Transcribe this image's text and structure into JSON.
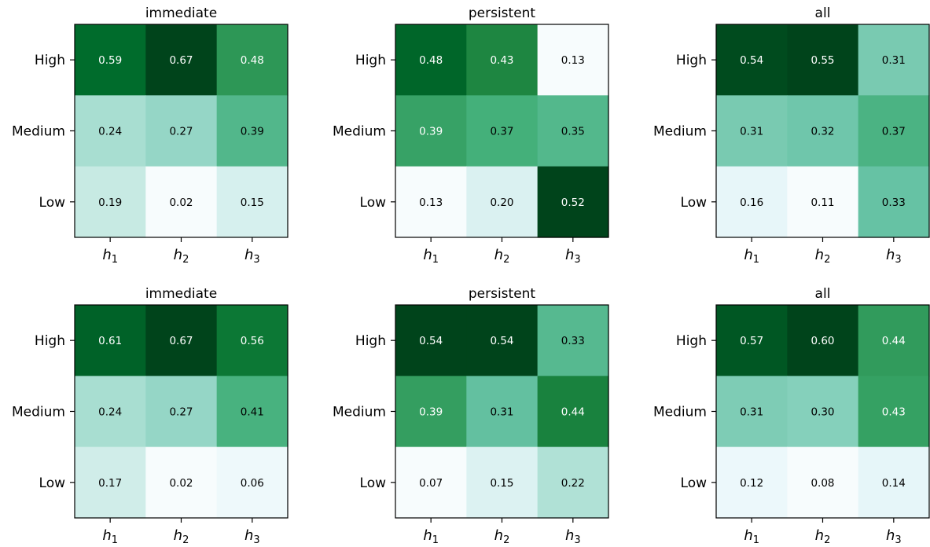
{
  "chart_data": [
    {
      "type": "heatmap",
      "title": "immediate",
      "x_categories": [
        {
          "base": "h",
          "sub": "1"
        },
        {
          "base": "h",
          "sub": "2"
        },
        {
          "base": "h",
          "sub": "3"
        }
      ],
      "y_categories": [
        "High",
        "Medium",
        "Low"
      ],
      "values": [
        [
          0.59,
          0.67,
          0.48
        ],
        [
          0.24,
          0.27,
          0.39
        ],
        [
          0.19,
          0.02,
          0.15
        ]
      ],
      "value_labels": [
        [
          "0.59",
          "0.67",
          "0.48"
        ],
        [
          "0.24",
          "0.27",
          "0.39"
        ],
        [
          "0.19",
          "0.02",
          "0.15"
        ]
      ],
      "colormap": "white-blue-green"
    },
    {
      "type": "heatmap",
      "title": "persistent",
      "x_categories": [
        {
          "base": "h",
          "sub": "1"
        },
        {
          "base": "h",
          "sub": "2"
        },
        {
          "base": "h",
          "sub": "3"
        }
      ],
      "y_categories": [
        "High",
        "Medium",
        "Low"
      ],
      "values": [
        [
          0.48,
          0.43,
          0.13
        ],
        [
          0.39,
          0.37,
          0.35
        ],
        [
          0.13,
          0.2,
          0.52
        ]
      ],
      "value_labels": [
        [
          "0.48",
          "0.43",
          "0.13"
        ],
        [
          "0.39",
          "0.37",
          "0.35"
        ],
        [
          "0.13",
          "0.20",
          "0.52"
        ]
      ],
      "colormap": "white-blue-green"
    },
    {
      "type": "heatmap",
      "title": "all",
      "x_categories": [
        {
          "base": "h",
          "sub": "1"
        },
        {
          "base": "h",
          "sub": "2"
        },
        {
          "base": "h",
          "sub": "3"
        }
      ],
      "y_categories": [
        "High",
        "Medium",
        "Low"
      ],
      "values": [
        [
          0.54,
          0.55,
          0.31
        ],
        [
          0.31,
          0.32,
          0.37
        ],
        [
          0.16,
          0.11,
          0.33
        ]
      ],
      "value_labels": [
        [
          "0.54",
          "0.55",
          "0.31"
        ],
        [
          "0.31",
          "0.32",
          "0.37"
        ],
        [
          "0.16",
          "0.11",
          "0.33"
        ]
      ],
      "colormap": "white-blue-green"
    },
    {
      "type": "heatmap",
      "title": "immediate",
      "x_categories": [
        {
          "base": "h",
          "sub": "1"
        },
        {
          "base": "h",
          "sub": "2"
        },
        {
          "base": "h",
          "sub": "3"
        }
      ],
      "y_categories": [
        "High",
        "Medium",
        "Low"
      ],
      "values": [
        [
          0.61,
          0.67,
          0.56
        ],
        [
          0.24,
          0.27,
          0.41
        ],
        [
          0.17,
          0.02,
          0.06
        ]
      ],
      "value_labels": [
        [
          "0.61",
          "0.67",
          "0.56"
        ],
        [
          "0.24",
          "0.27",
          "0.41"
        ],
        [
          "0.17",
          "0.02",
          "0.06"
        ]
      ],
      "colormap": "white-blue-green"
    },
    {
      "type": "heatmap",
      "title": "persistent",
      "x_categories": [
        {
          "base": "h",
          "sub": "1"
        },
        {
          "base": "h",
          "sub": "2"
        },
        {
          "base": "h",
          "sub": "3"
        }
      ],
      "y_categories": [
        "High",
        "Medium",
        "Low"
      ],
      "values": [
        [
          0.54,
          0.54,
          0.33
        ],
        [
          0.39,
          0.31,
          0.44
        ],
        [
          0.07,
          0.15,
          0.22
        ]
      ],
      "value_labels": [
        [
          "0.54",
          "0.54",
          "0.33"
        ],
        [
          "0.39",
          "0.31",
          "0.44"
        ],
        [
          "0.07",
          "0.15",
          "0.22"
        ]
      ],
      "colormap": "white-blue-green"
    },
    {
      "type": "heatmap",
      "title": "all",
      "x_categories": [
        {
          "base": "h",
          "sub": "1"
        },
        {
          "base": "h",
          "sub": "2"
        },
        {
          "base": "h",
          "sub": "3"
        }
      ],
      "y_categories": [
        "High",
        "Medium",
        "Low"
      ],
      "values": [
        [
          0.57,
          0.6,
          0.44
        ],
        [
          0.31,
          0.3,
          0.43
        ],
        [
          0.12,
          0.08,
          0.14
        ]
      ],
      "value_labels": [
        [
          "0.57",
          "0.60",
          "0.44"
        ],
        [
          "0.31",
          "0.30",
          "0.43"
        ],
        [
          "0.12",
          "0.08",
          "0.14"
        ]
      ],
      "colormap": "white-blue-green"
    }
  ]
}
